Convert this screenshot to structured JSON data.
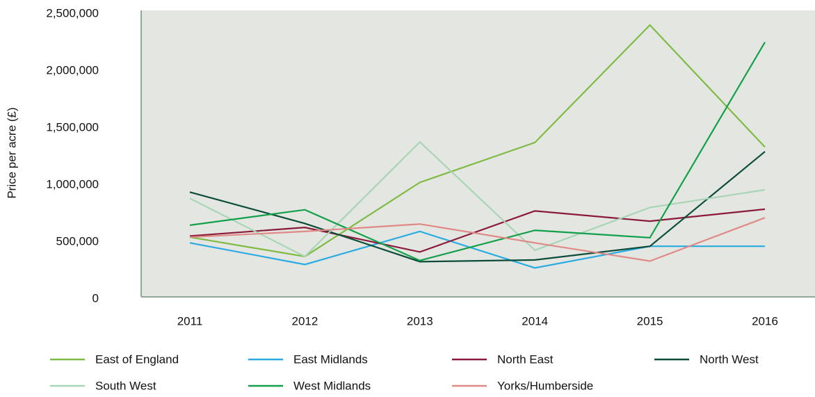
{
  "chart_data": {
    "type": "line",
    "y_label": "Price per acre (£)",
    "categories": [
      "2011",
      "2012",
      "2013",
      "2014",
      "2015",
      "2016"
    ],
    "ylim": [
      0,
      2500000
    ],
    "yticks": [
      {
        "value": 0,
        "label": "0"
      },
      {
        "value": 500000,
        "label": "500,000"
      },
      {
        "value": 1000000,
        "label": "1,000,000"
      },
      {
        "value": 1500000,
        "label": "1,500,000"
      },
      {
        "value": 2000000,
        "label": "2,000,000"
      },
      {
        "value": 2500000,
        "label": "2,500,000"
      }
    ],
    "grid": false,
    "series": [
      {
        "name": "East of England",
        "color": "#7dbb42",
        "values": [
          530000,
          360000,
          1010000,
          1360000,
          2390000,
          1320000
        ]
      },
      {
        "name": "East Midlands",
        "color": "#29abe2",
        "values": [
          480000,
          290000,
          580000,
          260000,
          450000,
          450000
        ]
      },
      {
        "name": "North East",
        "color": "#8b1a3a",
        "values": [
          540000,
          615000,
          400000,
          760000,
          670000,
          775000
        ]
      },
      {
        "name": "North West",
        "color": "#0b4d3a",
        "values": [
          925000,
          650000,
          315000,
          330000,
          450000,
          1280000
        ]
      },
      {
        "name": "South West",
        "color": "#a8d5b5",
        "values": [
          870000,
          360000,
          1365000,
          415000,
          790000,
          945000
        ]
      },
      {
        "name": "West Midlands",
        "color": "#12a04a",
        "values": [
          635000,
          770000,
          325000,
          590000,
          525000,
          2240000
        ]
      },
      {
        "name": "Yorks/Humberside",
        "color": "#e08a87",
        "values": [
          530000,
          580000,
          645000,
          480000,
          320000,
          700000
        ]
      }
    ]
  }
}
